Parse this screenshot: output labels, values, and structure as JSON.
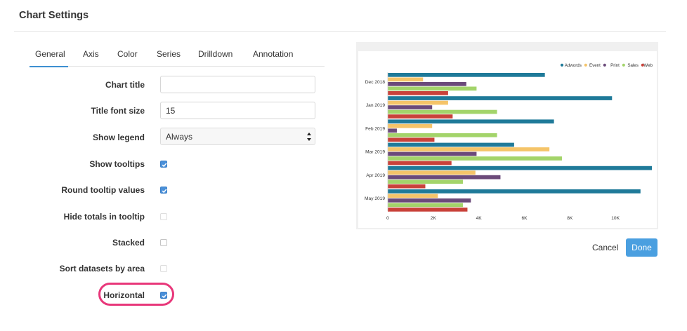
{
  "dialog": {
    "title": "Chart Settings"
  },
  "tabs": [
    {
      "label": "General",
      "active": true
    },
    {
      "label": "Axis"
    },
    {
      "label": "Color"
    },
    {
      "label": "Series"
    },
    {
      "label": "Drilldown"
    },
    {
      "label": "Annotation"
    }
  ],
  "form": {
    "chart_title": {
      "label": "Chart title",
      "value": ""
    },
    "title_font_size": {
      "label": "Title font size",
      "value": "15"
    },
    "show_legend": {
      "label": "Show legend",
      "value": "Always"
    },
    "show_tooltips": {
      "label": "Show tooltips",
      "checked": true
    },
    "round_tooltip_values": {
      "label": "Round tooltip values",
      "checked": true
    },
    "hide_totals_in_tooltip": {
      "label": "Hide totals in tooltip",
      "checked": false
    },
    "stacked": {
      "label": "Stacked",
      "checked": false
    },
    "sort_datasets_by_area": {
      "label": "Sort datasets by area",
      "checked": false
    },
    "horizontal": {
      "label": "Horizontal",
      "checked": true
    }
  },
  "footer": {
    "cancel_label": "Cancel",
    "done_label": "Done"
  },
  "colors": {
    "accent": "#4a9fe0",
    "highlight": "#e8377a"
  },
  "chart_data": {
    "type": "bar",
    "orientation": "horizontal",
    "categories": [
      "Dec 2018",
      "Jan 2019",
      "Feb 2019",
      "Mar 2019",
      "Apr 2019",
      "May 2019"
    ],
    "series": [
      {
        "name": "Adwords",
        "color": "#1f7a99",
        "values": [
          6900,
          9850,
          7300,
          5550,
          11600,
          11100
        ]
      },
      {
        "name": "Event",
        "color": "#f5c469",
        "values": [
          1550,
          2650,
          1950,
          7100,
          3850,
          2200
        ]
      },
      {
        "name": "Print",
        "color": "#6b4a7a",
        "values": [
          3450,
          1950,
          400,
          3900,
          4950,
          3650
        ]
      },
      {
        "name": "Sales",
        "color": "#a3d46a",
        "values": [
          3900,
          4800,
          4800,
          7650,
          3300,
          3300
        ]
      },
      {
        "name": "Web",
        "color": "#c9423a",
        "values": [
          2650,
          2850,
          2050,
          2800,
          1650,
          3500
        ]
      }
    ],
    "x_ticks": [
      "0",
      "2K",
      "4K",
      "6K",
      "8K",
      "10K"
    ],
    "xlim": [
      0,
      11600
    ],
    "legend_position": "top-right",
    "grid": false
  }
}
